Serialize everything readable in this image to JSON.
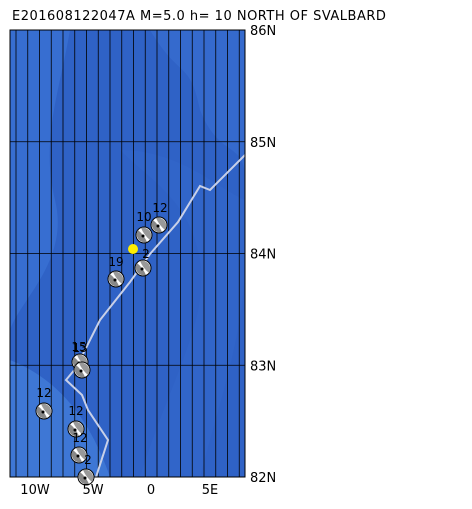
{
  "header": {
    "title": "E201608122047A M=5.0 h= 10 NORTH OF SVALBARD"
  },
  "map": {
    "lat_labels": [
      "86N",
      "85N",
      "84N",
      "83N",
      "82N"
    ],
    "lon_labels": [
      "10W",
      "5W",
      "0",
      "5E"
    ],
    "events": [
      {
        "label": "12"
      },
      {
        "label": "10"
      },
      {
        "label": "2"
      },
      {
        "label": "19"
      },
      {
        "label": "15"
      },
      {
        "label": "13"
      },
      {
        "label": "12"
      },
      {
        "label": "12"
      },
      {
        "label": "12"
      },
      {
        "label": "2"
      }
    ]
  }
}
